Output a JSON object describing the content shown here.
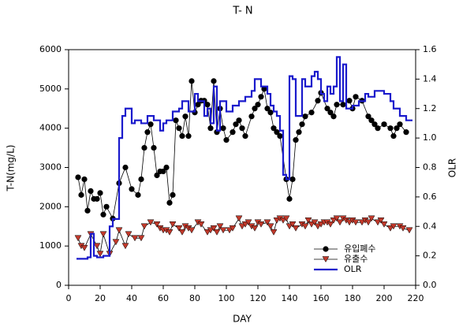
{
  "chart_data": {
    "type": "line",
    "title": "T- N",
    "xlabel": "DAY",
    "ylabel": "T-N(mg/L)",
    "y2label": "OLR",
    "xlim": [
      0,
      220
    ],
    "xticks": [
      0,
      20,
      40,
      60,
      80,
      100,
      120,
      140,
      160,
      180,
      200,
      220
    ],
    "ylim": [
      0,
      6000
    ],
    "yticks": [
      0,
      1000,
      2000,
      3000,
      4000,
      5000,
      6000
    ],
    "y2lim": [
      0,
      1.6
    ],
    "y2ticks": [
      {
        "value": 0,
        "label": "0.0"
      },
      0.2,
      0.4,
      0.6,
      0.8,
      {
        "value": 1,
        "label": "1.0"
      },
      1.2,
      1.4,
      1.6
    ],
    "legend": "lower right",
    "series": [
      {
        "name": "유입폐수",
        "color": "#000000",
        "marker": "circle",
        "x": [
          6,
          8,
          10,
          12,
          14,
          16,
          18,
          20,
          22,
          24,
          28,
          32,
          36,
          40,
          44,
          46,
          48,
          50,
          52,
          54,
          56,
          58,
          60,
          62,
          64,
          66,
          68,
          70,
          72,
          74,
          76,
          78,
          80,
          82,
          84,
          86,
          88,
          90,
          92,
          94,
          96,
          98,
          100,
          104,
          106,
          108,
          110,
          112,
          116,
          118,
          120,
          122,
          124,
          126,
          128,
          130,
          132,
          134,
          138,
          140,
          142,
          144,
          146,
          148,
          150,
          154,
          158,
          160,
          164,
          166,
          168,
          170,
          174,
          178,
          180,
          182,
          186,
          190,
          192,
          194,
          196,
          200,
          204,
          206,
          208,
          210,
          214
        ],
        "values": [
          2750,
          2300,
          2700,
          1900,
          2400,
          2200,
          2200,
          2350,
          1800,
          2000,
          1700,
          2600,
          3000,
          2450,
          2300,
          2700,
          3500,
          3900,
          4100,
          3500,
          2800,
          2900,
          2900,
          3000,
          2100,
          2300,
          4200,
          4000,
          3800,
          4300,
          3800,
          5200,
          4400,
          4600,
          4700,
          4700,
          4600,
          4000,
          5200,
          3900,
          4500,
          4000,
          3700,
          3900,
          4100,
          4200,
          4000,
          3800,
          4300,
          4500,
          4600,
          4800,
          5000,
          4500,
          4400,
          4000,
          3900,
          3800,
          2700,
          2200,
          2700,
          3700,
          3900,
          4100,
          4300,
          4400,
          4700,
          4900,
          4500,
          4400,
          4300,
          4600,
          4600,
          4700,
          4500,
          4800,
          4700,
          4300,
          4200,
          4100,
          4000,
          4100,
          4000,
          3800,
          4000,
          4100,
          3900
        ]
      },
      {
        "name": "유출수",
        "color": "#c0392b",
        "marker": "triangle-down",
        "x": [
          6,
          8,
          10,
          14,
          18,
          20,
          22,
          26,
          30,
          32,
          36,
          38,
          42,
          46,
          48,
          52,
          56,
          58,
          60,
          62,
          64,
          66,
          70,
          72,
          74,
          76,
          78,
          82,
          84,
          88,
          90,
          92,
          94,
          96,
          98,
          102,
          104,
          108,
          110,
          112,
          114,
          116,
          118,
          120,
          122,
          126,
          128,
          130,
          132,
          134,
          136,
          138,
          140,
          142,
          144,
          148,
          150,
          152,
          154,
          156,
          158,
          160,
          162,
          164,
          166,
          168,
          170,
          172,
          174,
          176,
          178,
          180,
          182,
          186,
          188,
          190,
          192,
          196,
          198,
          200,
          204,
          206,
          210,
          212,
          216
        ],
        "values": [
          1200,
          1000,
          950,
          1300,
          1000,
          800,
          1300,
          800,
          1100,
          1400,
          1000,
          1300,
          1200,
          1200,
          1500,
          1600,
          1550,
          1450,
          1400,
          1400,
          1350,
          1550,
          1450,
          1350,
          1500,
          1450,
          1400,
          1600,
          1550,
          1350,
          1400,
          1450,
          1350,
          1500,
          1400,
          1400,
          1450,
          1700,
          1500,
          1550,
          1600,
          1500,
          1450,
          1600,
          1550,
          1600,
          1500,
          1350,
          1650,
          1700,
          1650,
          1700,
          1500,
          1550,
          1450,
          1550,
          1500,
          1650,
          1550,
          1600,
          1500,
          1550,
          1600,
          1600,
          1550,
          1650,
          1700,
          1600,
          1700,
          1650,
          1600,
          1650,
          1600,
          1600,
          1650,
          1600,
          1700,
          1600,
          1650,
          1550,
          1450,
          1500,
          1500,
          1450,
          1400
        ]
      },
      {
        "name": "OLR",
        "color": "#1a1acc",
        "axis": "y2",
        "step": true,
        "x": [
          5,
          12,
          14,
          16,
          18,
          22,
          26,
          28,
          30,
          32,
          34,
          36,
          40,
          42,
          46,
          50,
          54,
          58,
          60,
          62,
          66,
          70,
          72,
          76,
          80,
          82,
          86,
          88,
          90,
          92,
          94,
          96,
          100,
          104,
          108,
          112,
          116,
          118,
          122,
          126,
          128,
          130,
          132,
          134,
          136,
          138,
          140,
          142,
          144,
          148,
          150,
          154,
          156,
          158,
          160,
          162,
          164,
          166,
          168,
          170,
          172,
          174,
          176,
          180,
          184,
          188,
          190,
          194,
          200,
          204,
          206,
          210,
          214,
          218
        ],
        "values": [
          0.18,
          0.19,
          0.35,
          0.2,
          0.19,
          0.2,
          0.4,
          0.45,
          0.45,
          1.0,
          1.15,
          1.2,
          1.1,
          1.12,
          1.1,
          1.15,
          1.12,
          1.05,
          1.1,
          1.12,
          1.18,
          1.2,
          1.25,
          1.18,
          1.3,
          1.25,
          1.15,
          1.2,
          1.1,
          1.35,
          1.05,
          1.25,
          1.18,
          1.22,
          1.25,
          1.28,
          1.32,
          1.4,
          1.35,
          1.3,
          1.22,
          1.18,
          1.15,
          1.05,
          0.75,
          0.72,
          1.42,
          1.4,
          1.15,
          1.4,
          1.35,
          1.42,
          1.45,
          1.4,
          1.3,
          1.25,
          1.35,
          1.3,
          1.35,
          1.55,
          1.25,
          1.5,
          1.2,
          1.22,
          1.25,
          1.3,
          1.28,
          1.32,
          1.3,
          1.25,
          1.2,
          1.15,
          1.12,
          1.12
        ]
      }
    ]
  }
}
